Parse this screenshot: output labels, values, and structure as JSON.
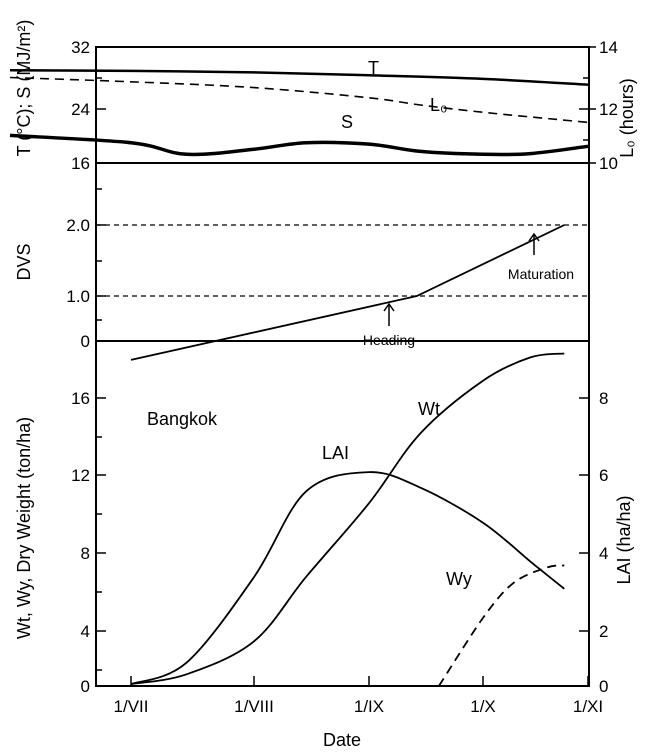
{
  "chart_data": [
    {
      "panel": "weather",
      "type": "line",
      "ylabel_left": "T (°C); S (MJ/m²)",
      "ylabel_right": "L₀ (hours)",
      "ylim_left": [
        16,
        32
      ],
      "ylim_right": [
        10,
        14
      ],
      "yticks_left": [
        "16",
        "24",
        "32"
      ],
      "yticks_right": [
        "10",
        "12",
        "14"
      ],
      "series": [
        {
          "name": "T",
          "axis": "left",
          "style": "solid",
          "x": [
            "1/VI",
            "1/VII",
            "1/VIII",
            "1/IX",
            "1/X",
            "1/XI"
          ],
          "values": [
            28.8,
            28.7,
            28.5,
            28.1,
            27.6,
            26.8
          ]
        },
        {
          "name": "L₀",
          "axis": "right",
          "style": "dashed",
          "x": [
            "1/VI",
            "1/VII",
            "1/VIII",
            "1/IX",
            "15/IX",
            "1/X",
            "1/XI"
          ],
          "values": [
            12.95,
            12.8,
            12.6,
            12.25,
            12.0,
            11.75,
            11.4
          ]
        },
        {
          "name": "S",
          "axis": "left",
          "style": "solid-thick",
          "x": [
            "1/VI",
            "1/VII",
            "15/VII",
            "1/VIII",
            "15/VIII",
            "1/IX",
            "15/IX",
            "1/X",
            "15/X",
            "1/XI"
          ],
          "values": [
            19.8,
            18.8,
            17.2,
            17.9,
            18.8,
            18.6,
            17.6,
            17.2,
            17.3,
            18.3
          ]
        }
      ]
    },
    {
      "panel": "development",
      "type": "line",
      "ylabel": "DVS",
      "ylim": [
        0,
        2.5
      ],
      "yticks": [
        "0",
        "1.0",
        "2.0"
      ],
      "reference_lines": [
        1.0,
        2.0
      ],
      "series": [
        {
          "name": "DVS",
          "x": [
            "1/VII",
            "14/IX",
            "25/X"
          ],
          "values": [
            0.1,
            1.0,
            2.0
          ]
        }
      ],
      "annotations": [
        {
          "text": "Heading",
          "x": "14/IX",
          "y": 1.0
        },
        {
          "text": "Maturation",
          "x": "25/X",
          "y": 2.0
        }
      ]
    },
    {
      "panel": "growth",
      "type": "line",
      "xlabel": "Date",
      "xticks": [
        "1/VII",
        "1/VIII",
        "1/IX",
        "1/X",
        "1/XI"
      ],
      "ylabel_left": "Wt, Wy, Dry Weight (ton/ha)",
      "ylabel_right": "LAI (ha/ha)",
      "ylim_left": [
        0,
        18
      ],
      "ylim_right": [
        0,
        9
      ],
      "yticks_left": [
        "0",
        "4",
        "8",
        "12",
        "16"
      ],
      "yticks_right": [
        "0",
        "2",
        "4",
        "6",
        "8"
      ],
      "location_label": "Bangkok",
      "series": [
        {
          "name": "Wt",
          "axis": "left",
          "style": "solid",
          "x": [
            "1/VII",
            "15/VII",
            "1/VIII",
            "15/VIII",
            "1/IX",
            "15/IX",
            "1/X",
            "15/X",
            "25/X"
          ],
          "values": [
            0.1,
            0.6,
            2.3,
            5.6,
            9.4,
            13.0,
            15.7,
            16.9,
            17.1
          ]
        },
        {
          "name": "LAI",
          "axis": "right",
          "style": "solid",
          "x": [
            "1/VII",
            "15/VII",
            "1/VIII",
            "15/VIII",
            "1/IX",
            "15/IX",
            "1/X",
            "15/X",
            "25/X"
          ],
          "values": [
            0.05,
            0.6,
            2.8,
            5.0,
            5.5,
            5.1,
            4.2,
            3.2,
            2.5
          ]
        },
        {
          "name": "Wy",
          "axis": "left",
          "style": "dashed",
          "x": [
            "20/IX",
            "1/X",
            "10/X",
            "20/X",
            "25/X"
          ],
          "values": [
            0.0,
            3.5,
            5.3,
            6.1,
            6.2
          ]
        }
      ]
    }
  ]
}
